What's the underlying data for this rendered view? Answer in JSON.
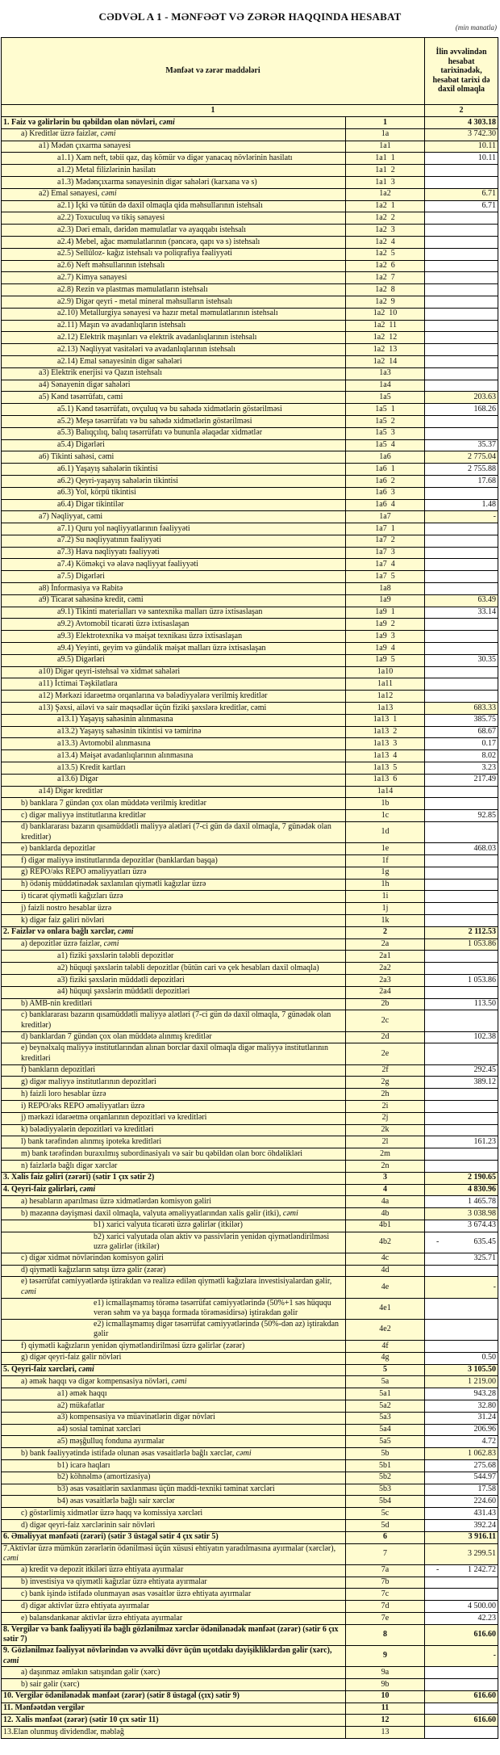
{
  "title": "CƏDVƏL A 1 - MƏNFƏƏT VƏ ZƏRƏR HAQQINDA HESABAT",
  "unit": "(min manatla)",
  "header": {
    "items_col": "Mənfəət və zərər maddələri",
    "period_col": "İlin əvvəlindən hesabat tarixinədək, hesabat tarixi də daxil olmaqla",
    "col_num_1": "1",
    "col_num_2": "2"
  },
  "colors": {
    "cell_fill": "#fffcd0",
    "input_fill": "#ffffff",
    "border": "#000000"
  },
  "rows": [
    {
      "l": "1. Faiz və gəlirlərin bu qəbildən olan növləri, ",
      "e": "cəmi",
      "c": "1",
      "v": "4 303.18",
      "lv": 0,
      "b": true
    },
    {
      "l": "a) Kreditlər üzrə faizlər, ",
      "e": "cəmi",
      "c": "1a",
      "v": "3 742.30",
      "lv": 1
    },
    {
      "l": "a1) Mədən çıxarma sənayesi",
      "c": "1a1",
      "v": "10.11",
      "lv": 2
    },
    {
      "l": "a1.1) Xam neft, təbii qaz, daş kömür və digər yanacaq növlərinin hasilatı",
      "c": "1a1  1",
      "v": "10.11",
      "lv": 3,
      "w": true
    },
    {
      "l": "a1.2) Metal filizlərinin hasilatı",
      "c": "1a1  2",
      "v": "",
      "lv": 3,
      "w": true
    },
    {
      "l": "a1.3) Mədənçıxarma sənayesinin digər sahələri (karxana və s)",
      "c": "1a1  3",
      "v": "",
      "lv": 3,
      "w": true
    },
    {
      "l": "a2) Emal sənayesi, ",
      "e": "cəmi",
      "c": "1a2",
      "v": "6.71",
      "lv": 2
    },
    {
      "l": "a2.1) İçki və tütün də daxil olmaqla qida məhsullarının istehsalı",
      "c": "1a2  1",
      "v": "6.71",
      "lv": 3,
      "w": true
    },
    {
      "l": "a2.2) Toxuculuq və tikiş sənayesi",
      "c": "1a2  2",
      "v": "",
      "lv": 3,
      "w": true
    },
    {
      "l": "a2.3) Dəri emalı, dəridən məmulatlar və ayaqqabı istehsalı",
      "c": "1a2  3",
      "v": "",
      "lv": 3,
      "w": true
    },
    {
      "l": "a2.4) Mebel, ağac məmulatlarının (pəncərə, qapı və s) istehsalı",
      "c": "1a2  4",
      "v": "",
      "lv": 3,
      "w": true
    },
    {
      "l": "a2.5) Sellüloz- kağız istehsalı və poliqrafiya fəaliyyəti",
      "c": "1a2  5",
      "v": "",
      "lv": 3,
      "w": true
    },
    {
      "l": "a2.6) Neft məhsullarının istehsalı",
      "c": "1a2  6",
      "v": "",
      "lv": 3,
      "w": true
    },
    {
      "l": "a2.7) Kimya sənayesi",
      "c": "1a2  7",
      "v": "",
      "lv": 3,
      "w": true
    },
    {
      "l": "a2.8) Rezin və plastmas məmulatların istehsalı",
      "c": "1a2  8",
      "v": "",
      "lv": 3,
      "w": true
    },
    {
      "l": "a2.9) Digər qeyri - metal mineral məhsulların istehsalı",
      "c": "1a2  9",
      "v": "",
      "lv": 3,
      "w": true
    },
    {
      "l": "a2.10) Metallurgiya sənayesi və hazır metal məmulatlarının istehsalı",
      "c": "1a2  10",
      "v": "",
      "lv": 3,
      "w": true
    },
    {
      "l": "a2.11) Maşın və avadanlıqların istehsalı",
      "c": "1a2  11",
      "v": "",
      "lv": 3,
      "w": true
    },
    {
      "l": "a2.12) Elektrik maşınları və elektrik avadanlıqlarının istehsalı",
      "c": "1a2  12",
      "v": "",
      "lv": 3,
      "w": true
    },
    {
      "l": "a2.13) Nəqliyyat vasitələri və avadanlıqlarının istehsalı",
      "c": "1a2  13",
      "v": "",
      "lv": 3,
      "w": true
    },
    {
      "l": "a2.14) Emal sənayesinin digər sahələri",
      "c": "1a2  14",
      "v": "",
      "lv": 3,
      "w": true
    },
    {
      "l": "a3) Elektrik enerjisi və Qazın istehsalı",
      "c": "1a3",
      "v": "",
      "lv": 2,
      "w": true
    },
    {
      "l": "a4) Sənayenin digər sahələri",
      "c": "1a4",
      "v": "",
      "lv": 2,
      "w": true
    },
    {
      "l": "a5) Kənd təsərrüfatı, cəmi",
      "c": "1a5",
      "v": "203.63",
      "lv": 2
    },
    {
      "l": "a5.1) Kənd təsərrüfatı, ovçuluq və bu sahədə xidmətlərin göstərilməsi",
      "c": "1a5  1",
      "v": "168.26",
      "lv": 3,
      "w": true
    },
    {
      "l": "a5.2) Meşə təsərrüfatı və bu sahədə xidmətlərin göstərilməsi",
      "c": "1a5  2",
      "v": "",
      "lv": 3,
      "w": true
    },
    {
      "l": "a5.3) Balıqçılıq, balıq təsərrüfatı və bununla əlaqədar xidmətlər",
      "c": "1a5  3",
      "v": "",
      "lv": 3,
      "w": true
    },
    {
      "l": "a5.4) Digərləri",
      "c": "1a5  4",
      "v": "35.37",
      "lv": 3,
      "w": true
    },
    {
      "l": "a6) Tikinti sahəsi, cəmi",
      "c": "1a6",
      "v": "2 775.04",
      "lv": 2
    },
    {
      "l": "a6.1) Yaşayış sahələrin tikintisi",
      "c": "1a6  1",
      "v": "2 755.88",
      "lv": 3,
      "w": true
    },
    {
      "l": "a6.2) Qeyri-yaşayış sahələrin tikintisi",
      "c": "1a6  2",
      "v": "17.68",
      "lv": 3,
      "w": true
    },
    {
      "l": "a6.3) Yol, körpü tikintisi",
      "c": "1a6  3",
      "v": "",
      "lv": 3,
      "w": true
    },
    {
      "l": "a6.4) Digər tikintilər",
      "c": "1a6  4",
      "v": "1.48",
      "lv": 3,
      "w": true
    },
    {
      "l": "a7) Nəqliyyat, cəmi",
      "c": "1a7",
      "v": "-",
      "lv": 2
    },
    {
      "l": "a7.1) Quru yol nəqliyyatlarının fəaliyyəti",
      "c": "1a7  1",
      "v": "",
      "lv": 3,
      "w": true
    },
    {
      "l": "a7.2) Su nəqliyyatının fəaliyyəti",
      "c": "1a7  2",
      "v": "",
      "lv": 3,
      "w": true
    },
    {
      "l": "a7.3) Hava nəqliyyatı fəaliyyəti",
      "c": "1a7  3",
      "v": "",
      "lv": 3,
      "w": true
    },
    {
      "l": "a7.4) Köməkçi və əlavə nəqliyyat fəaliyyəti",
      "c": "1a7  4",
      "v": "",
      "lv": 3,
      "w": true
    },
    {
      "l": "a7.5) Digərləri",
      "c": "1a7  5",
      "v": "",
      "lv": 3,
      "w": true
    },
    {
      "l": "a8)  İnformasiya və Rabitə",
      "c": "1a8",
      "v": "",
      "lv": 2,
      "w": true
    },
    {
      "l": "a9) Ticarət sahəsinə kredit, cəmi",
      "c": "1a9",
      "v": "63.49",
      "lv": 2
    },
    {
      "l": "a9.1) Tikinti materialları və santexnika malları üzrə ixtisaslaşan",
      "c": "1a9  1",
      "v": "33.14",
      "lv": 3,
      "w": true
    },
    {
      "l": "a9.2) Avtomobil ticarəti üzrə ixtisaslaşan",
      "c": "1a9  2",
      "v": "",
      "lv": 3,
      "w": true
    },
    {
      "l": "a9.3) Elektrotexnika və məişət texnikası üzrə ixtisaslaşan",
      "c": "1a9  3",
      "v": "",
      "lv": 3,
      "w": true
    },
    {
      "l": "a9.4) Yeyinti, geyim və gündəlik məişət malları üzrə ixtisaslaşan",
      "c": "1a9  4",
      "v": "",
      "lv": 3,
      "w": true
    },
    {
      "l": "a9.5) Digərləri",
      "c": "1a9  5",
      "v": "30.35",
      "lv": 3,
      "w": true
    },
    {
      "l": "a10) Digər qeyri-istehsal və xidmət sahələri",
      "c": "1a10",
      "v": "",
      "lv": 2,
      "w": true
    },
    {
      "l": "a11) İctimai Təşkilatlara",
      "c": "1a11",
      "v": "",
      "lv": 2,
      "w": true
    },
    {
      "l": "a12) Mərkəzi  idarəetmə orqanlarına və bələdiyyələrə verilmiş kreditlər",
      "c": "1a12",
      "v": "",
      "lv": 2,
      "w": true
    },
    {
      "l": "a13) Şəxsi, ailəvi və sair məqsədlər üçün fiziki şəxslərə kreditlər, cəmi",
      "c": "1a13",
      "v": "683.33",
      "lv": 2
    },
    {
      "l": "a13.1) Yaşayış sahəsinin alınmasına",
      "c": "1a13  1",
      "v": "385.75",
      "lv": 3,
      "w": true
    },
    {
      "l": "a13.2) Yaşayış sahəsinin tikintisi və təmirinə",
      "c": "1a13  2",
      "v": "68.67",
      "lv": 3,
      "w": true
    },
    {
      "l": "a13.3) Avtomobil alınmasına",
      "c": "1a13  3",
      "v": "0.17",
      "lv": 3,
      "w": true
    },
    {
      "l": "a13.4) Məişət avadanlıqlarının alınmasına",
      "c": "1a13  4",
      "v": "8.02",
      "lv": 3,
      "w": true
    },
    {
      "l": "a13.5) Kredit kartları",
      "c": "1a13  5",
      "v": "3.23",
      "lv": 3,
      "w": true
    },
    {
      "l": "a13.6) Digər",
      "c": "1a13  6",
      "v": "217.49",
      "lv": 3,
      "w": true
    },
    {
      "l": "a14) Digər kreditlər",
      "c": "1a14",
      "v": "",
      "lv": 2,
      "w": true
    },
    {
      "l": "b) banklara 7 gündən çox olan müddətə verilmiş kreditlər",
      "c": "1b",
      "v": "",
      "lv": 1,
      "w": true
    },
    {
      "l": "c) digər maliyyə institutlarına kreditlər",
      "c": "1c",
      "v": "92.85",
      "lv": 1,
      "w": true
    },
    {
      "l": "d) banklararası bazarın qısamüddətli maliyyə alətləri (7-ci gün də daxil olmaqla, 7 günədək olan kreditlər)",
      "c": "1d",
      "v": "",
      "lv": 1,
      "w": true
    },
    {
      "l": "e) banklarda depozitlər",
      "c": "1e",
      "v": "468.03",
      "lv": 1,
      "w": true
    },
    {
      "l": "f) digər maliyyə institutlarında depozitlər (banklardan başqa)",
      "c": "1f",
      "v": "",
      "lv": 1,
      "w": true
    },
    {
      "l": "g) REPO/əks REPO əməliyyatları üzrə",
      "c": "1g",
      "v": "",
      "lv": 1,
      "w": true
    },
    {
      "l": "h) ödəniş müddətinədək saxlanılan qiymətli kağızlar üzrə",
      "c": "1h",
      "v": "",
      "lv": 1,
      "w": true
    },
    {
      "l": "i) ticarət qiymətli kağızları üzrə",
      "c": "1i",
      "v": "",
      "lv": 1,
      "w": true
    },
    {
      "l": "j) faizli nostro hesablar üzrə",
      "c": "1j",
      "v": "",
      "lv": 1,
      "w": true
    },
    {
      "l": "k) digər faiz gəliri növləri",
      "c": "1k",
      "v": "",
      "lv": 1,
      "w": true
    },
    {
      "l": "2. Faizlər və onlara bağlı xərclər, ",
      "e": "cəmi",
      "c": "2",
      "v": "2 112.53",
      "lv": 0,
      "b": true
    },
    {
      "l": "a) depozitlər üzrə faizlər, ",
      "e": "cəmi",
      "c": "2a",
      "v": "1 053.86",
      "lv": 1
    },
    {
      "l": "a1) fiziki şəxslərin tələbli depozitlər",
      "c": "2a1",
      "v": "",
      "lv": 3,
      "w": true
    },
    {
      "l": "a2) hüquqi şəxslərin tələbli depozitlər (bütün cari və çek hesabları daxil olmaqla)",
      "c": "2a2",
      "v": "",
      "lv": 3,
      "w": true
    },
    {
      "l": "a3) fiziki şəxslərin müddətli depozitləri",
      "c": "2a3",
      "v": "1 053.86",
      "lv": 3,
      "w": true
    },
    {
      "l": "a4) hüquqi şəxslərin müddətli depozitləri",
      "c": "2a4",
      "v": "",
      "lv": 3,
      "w": true
    },
    {
      "l": "b) AMB-nin kreditləri",
      "c": "2b",
      "v": "113.50",
      "lv": 1,
      "w": true
    },
    {
      "l": "c) banklararası bazarın qısamüddətli maliyyə alətləri (7-ci gün də daxil olmaqla, 7 günədək olan kreditlər)",
      "c": "2c",
      "v": "",
      "lv": 1,
      "w": true
    },
    {
      "l": "d) banklardan 7 gündən çox olan müddətə alınmış kreditlər",
      "c": "2d",
      "v": "102.38",
      "lv": 1,
      "w": true
    },
    {
      "l": "e) beynəlxalq maliyyə institutlarından alınan borclar daxil olmaqla digər maliyyə institutlarının kreditləri",
      "c": "2e",
      "v": "",
      "lv": 1,
      "w": true
    },
    {
      "l": "f) bankların depozitləri",
      "c": "2f",
      "v": "292.45",
      "lv": 1,
      "w": true
    },
    {
      "l": "g) digər maliyyə institutlarının depozitləri",
      "c": "2g",
      "v": "389.12",
      "lv": 1,
      "w": true
    },
    {
      "l": "h) faizli loro hesablar üzrə",
      "c": "2h",
      "v": "",
      "lv": 1,
      "w": true
    },
    {
      "l": "i) REPO/əks REPO əməliyyatları üzrə",
      "c": "2i",
      "v": "",
      "lv": 1,
      "w": true
    },
    {
      "l": "j) mərkəzi idarəetmə orqanlarının depozitləri və kreditləri",
      "c": "2j",
      "v": "",
      "lv": 1,
      "w": true
    },
    {
      "l": "k) bələdiyyələrin depozitləri və kreditləri",
      "c": "2k",
      "v": "",
      "lv": 1,
      "w": true
    },
    {
      "l": "l) bank tərəfindən alınmış ipoteka kreditləri",
      "c": "2l",
      "v": "161.23",
      "lv": 1,
      "w": true
    },
    {
      "l": "m) bank tərəfindən buraxılmış subordinasiyalı və sair bu qəbildən olan borc öhdəlikləri",
      "c": "2m",
      "v": "",
      "lv": 1,
      "w": true
    },
    {
      "l": "n) faizlərlə bağlı digər xərclər",
      "c": "2n",
      "v": "",
      "lv": 1,
      "w": true
    },
    {
      "l": "3. Xalis faiz gəliri (zərəri) (sətir 1 çıx sətir 2)",
      "c": "3",
      "v": "2 190.65",
      "lv": 0,
      "b": true
    },
    {
      "l": "4. Qeyri-faiz gəlirləri, ",
      "e": "cəmi",
      "c": "4",
      "v": "4 830.96",
      "lv": 0,
      "b": true
    },
    {
      "l": "a) hesabların aparılması üzrə xidmətlərdən komisyon gəliri",
      "c": "4a",
      "v": "1 465.78",
      "lv": 1,
      "w": true
    },
    {
      "l": "b) məzənnə dəyişməsi daxil olmaqla, valyuta əməliyyatlarından xalis gəlir (itki), ",
      "e": "cəmi",
      "c": "4b",
      "v": "3 038.98",
      "lv": 1
    },
    {
      "l": "b1) xarici valyuta ticarəti üzrə gəlirlər (itkilər)",
      "c": "4b1",
      "v": "3 674.43",
      "lv": 4,
      "w": true
    },
    {
      "l": "b2) xarici valyutada olan aktiv və passivlərin yenidən qiymətləndirilməsi uzrə gəlirlər (itkilər)",
      "c": "4b2",
      "v": "- 635.45",
      "lv": 4,
      "w": true
    },
    {
      "l": "c) digər xidmət növlərindən komisyon gəliri",
      "c": "4c",
      "v": "325.71",
      "lv": 1,
      "w": true
    },
    {
      "l": "d) qiymətli kağızların satışı üzrə gəlir (zərər)",
      "c": "4d",
      "v": "",
      "lv": 1,
      "w": true
    },
    {
      "l": "e) təsərrüfat cəmiyyətlərdə iştirakdan və realizə edilən qiymətli kağızlara investisiyalardan gəlir, ",
      "e": "cəmi",
      "c": "4e",
      "v": "-",
      "lv": 1
    },
    {
      "l": "e1) icmallaşmamış törəmə təsərrüfat cəmiyyətlərində  (50%+1 səs hüququ verən səhm və ya başqa formada törəməsidirsə) iştirakdan gəlir",
      "c": "4e1",
      "v": "",
      "lv": 4,
      "w": true
    },
    {
      "l": "e2) icmallaşmamış digər təsərrüfat cəmiyyətlərində (50%-dən az) iştirakdan gəlir",
      "c": "4e2",
      "v": "",
      "lv": 4,
      "w": true
    },
    {
      "l": "f) qiymətli kağızların yenidən qiymətləndirilməsi üzrə gəlirlər (zərər)",
      "c": "4f",
      "v": "",
      "lv": 1,
      "w": true
    },
    {
      "l": "g) digər qeyri-faiz gəlir növləri",
      "c": "4g",
      "v": "0.50",
      "lv": 1,
      "w": true
    },
    {
      "l": "5. Qeyri-faiz xərcləri, ",
      "e": "cəmi",
      "c": "5",
      "v": "3 105.50",
      "lv": 0,
      "b": true
    },
    {
      "l": "a) əmək haqqı və digər kompensasiya növləri, ",
      "e": "cəmi",
      "c": "5a",
      "v": "1 219.00",
      "lv": 1
    },
    {
      "l": "a1) əmək haqqı",
      "c": "5a1",
      "v": "943.28",
      "lv": 3,
      "w": true
    },
    {
      "l": "a2) mükafatlar",
      "c": "5a2",
      "v": "32.80",
      "lv": 3,
      "w": true
    },
    {
      "l": "a3) kompensasiya və müavinətlərin digər növləri",
      "c": "5a3",
      "v": "31.24",
      "lv": 3,
      "w": true
    },
    {
      "l": "a4) sosial təminat xərcləri",
      "c": "5a4",
      "v": "206.96",
      "lv": 3,
      "w": true
    },
    {
      "l": "a5) məşğulluq fonduna ayırmalar",
      "c": "5a5",
      "v": "4.72",
      "lv": 3,
      "w": true
    },
    {
      "l": "b) bank fəaliyyətində istifadə olunan əsas vəsaitlərlə bağlı xərclər, ",
      "e": "cəmi",
      "c": "5b",
      "v": "1 062.83",
      "lv": 1
    },
    {
      "l": "b1) icarə haqları",
      "c": "5b1",
      "v": "275.68",
      "lv": 3,
      "w": true
    },
    {
      "l": "b2) köhnəlmə (amortizasiya)",
      "c": "5b2",
      "v": "544.97",
      "lv": 3,
      "w": true
    },
    {
      "l": "b3) əsas vəsaitlərin saxlanması üçün maddi-texniki təminat xərcləri",
      "c": "5b3",
      "v": "17.58",
      "lv": 3,
      "w": true
    },
    {
      "l": "b4) əsas vəsaitlərlə bağlı sair xərclər",
      "c": "5b4",
      "v": "224.60",
      "lv": 3,
      "w": true
    },
    {
      "l": "c) göstərlimiş xidmətlər üzrə haqq və komissiya xərcləri",
      "c": "5c",
      "v": "431.43",
      "lv": 1,
      "w": true
    },
    {
      "l": "d) digər qeyri-faiz xərclərinin sair növləri",
      "c": "5d",
      "v": "392.24",
      "lv": 1,
      "w": true
    },
    {
      "l": "6. Əməliyyat mənfəəti (zərəri) (sətir 3 üstəgəl sətir 4 çıx sətir 5)",
      "c": "6",
      "v": "3 916.11",
      "lv": 0,
      "b": true
    },
    {
      "l": "7.Aktivlər üzrə mümkün zərərlərin ödənilməsi üçün xüsusi ehtiyatın yaradılmasına ayırmalar (xərclər), ",
      "e": "cəmi",
      "c": "7",
      "v": "3 299.51",
      "lv": 0
    },
    {
      "l": "a) kredit və depozit itkiləri üzrə ehtiyata ayırmalar",
      "c": "7a",
      "v": "- 1 242.72",
      "lv": 1,
      "w": true
    },
    {
      "l": "b) investisiya və qiymətli kağızlar üzrə ehtiyata ayırmalar",
      "c": "7b",
      "v": "",
      "lv": 1,
      "w": true
    },
    {
      "l": "c) bank işində istifadə olunmayan əsas vəsaitlər üzrə ehtiyata ayırmalar",
      "c": "7c",
      "v": "",
      "lv": 1,
      "w": true
    },
    {
      "l": "d) digər aktivlər üzrə ehtiyata ayırmalar",
      "c": "7d",
      "v": "4 500.00",
      "lv": 1,
      "w": true
    },
    {
      "l": "e) balansdankənar aktivlər üzrə ehtiyata ayırmalar",
      "c": "7e",
      "v": "42.23",
      "lv": 1,
      "w": true
    },
    {
      "l": "8. Vergilər və bank fəaliyyəti ilə bağlı gözlənilməz xərclər ödənilənədək mənfəət (zərər) (sətir 6 çıx sətir 7)",
      "c": "8",
      "v": "616.60",
      "lv": 0,
      "b": true,
      "vn": true
    },
    {
      "l": "9. Gözlənilməz fəaliyyət növlərindən və əvvəlki dövr üçün uçotdakı dəyişikliklərdən gəlir (xərc), ",
      "e": "cəmi",
      "c": "9",
      "v": "-",
      "lv": 0,
      "b": true,
      "vn": true
    },
    {
      "l": "a) daşınmaz əmlakın satışından gəlir (xərc)",
      "c": "9a",
      "v": "",
      "lv": 1,
      "w": true
    },
    {
      "l": "b) sair gəlir (xərc)",
      "c": "9b",
      "v": "",
      "lv": 1,
      "w": true
    },
    {
      "l": "10. Vergilər ödənilənədək mənfəət (zərər) (sətir 8 üstəgəl (çıx) sətir 9)",
      "c": "10",
      "v": "616.60",
      "lv": 0,
      "b": true,
      "vn": true
    },
    {
      "l": "11. Mənfəətdən vergilər",
      "c": "11",
      "v": "",
      "lv": 0,
      "b": true,
      "w": true
    },
    {
      "l": "12. Xalis mənfəət (zərər) (sətir 10 çıx sətir 11)",
      "c": "12",
      "v": "616.60",
      "lv": 0,
      "b": true
    },
    {
      "l": "13.Elan olunmuş dividendlər, məbləğ",
      "c": "13",
      "v": "",
      "lv": 0,
      "w": true
    }
  ]
}
